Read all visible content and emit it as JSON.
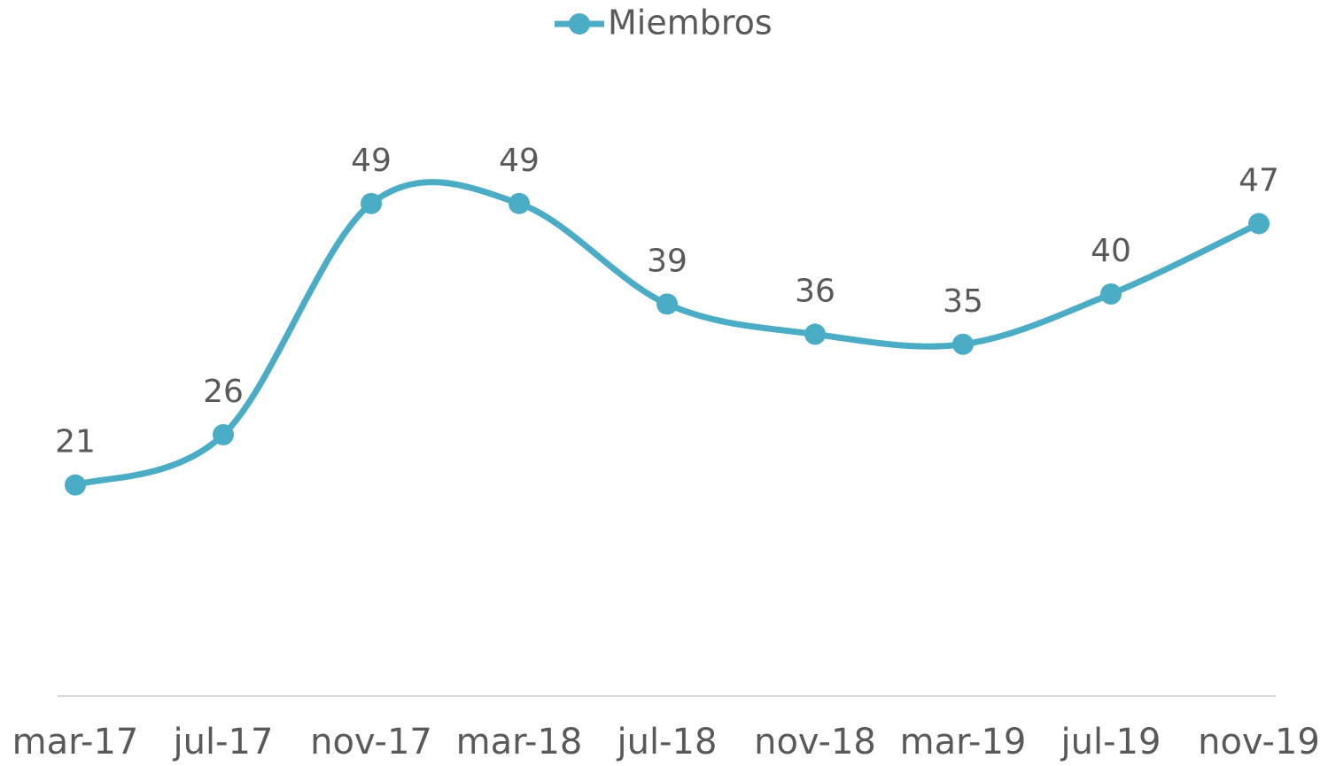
{
  "chart_data": {
    "type": "line",
    "categories": [
      "mar-17",
      "jul-17",
      "nov-17",
      "mar-18",
      "jul-18",
      "nov-18",
      "mar-19",
      "jul-19",
      "nov-19"
    ],
    "series": [
      {
        "name": "Miembros",
        "color": "#4bacc6",
        "values": [
          21,
          26,
          49,
          49,
          39,
          36,
          35,
          40,
          47
        ]
      }
    ],
    "ylim": [
      0,
      60
    ],
    "smooth": true,
    "legend": "top",
    "data_labels": true
  }
}
